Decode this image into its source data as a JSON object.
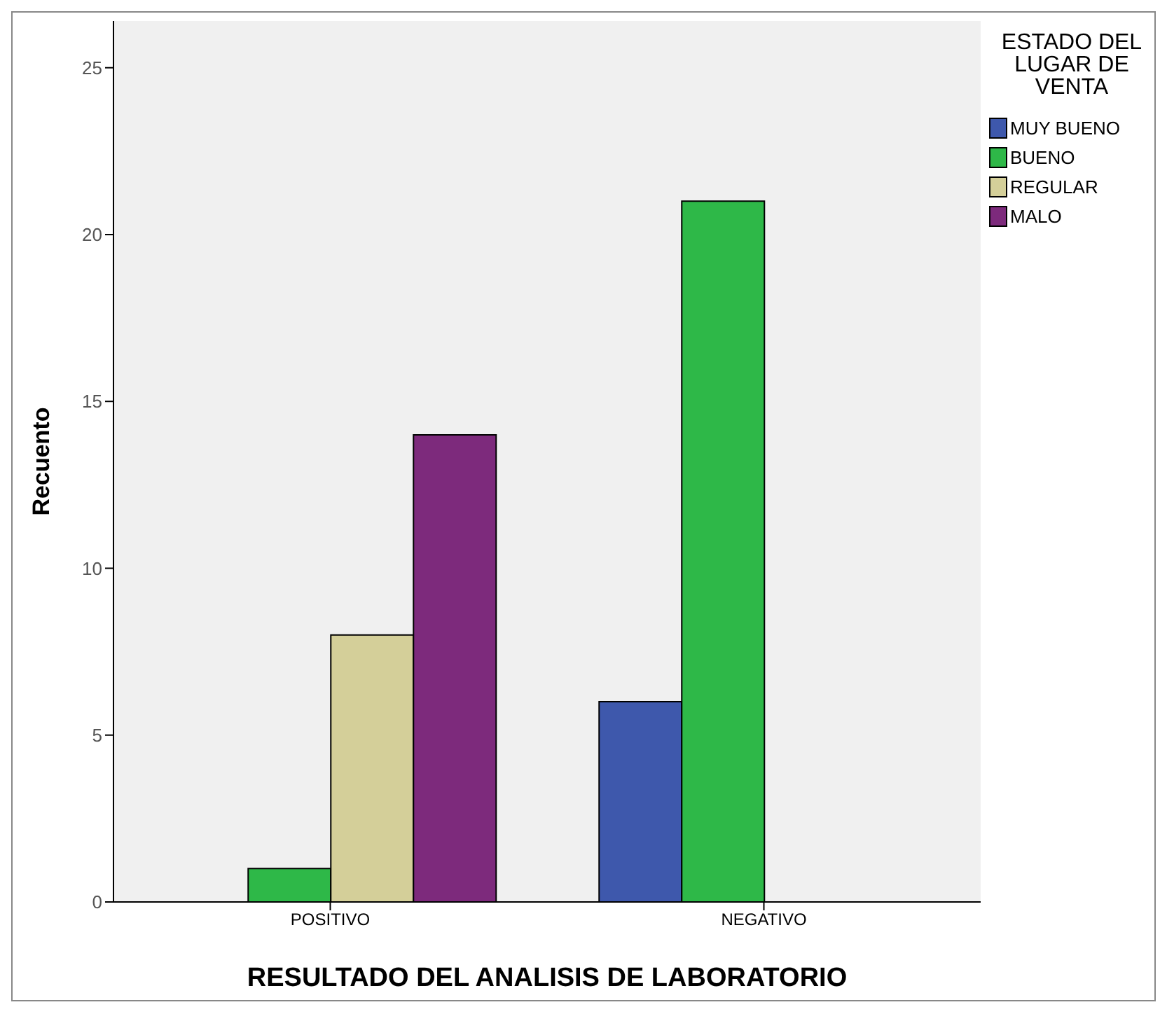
{
  "chart_data": {
    "type": "bar",
    "xlabel": "RESULTADO DEL ANALISIS DE LABORATORIO",
    "ylabel": "Recuento",
    "legend_title": "ESTADO DEL LUGAR DE VENTA",
    "categories": [
      "POSITIVO",
      "NEGATIVO"
    ],
    "series": [
      {
        "name": "MUY BUENO",
        "color": "#3e58ac",
        "values": [
          null,
          6
        ]
      },
      {
        "name": "BUENO",
        "color": "#2eb848",
        "values": [
          1,
          21
        ]
      },
      {
        "name": "REGULAR",
        "color": "#d4cf99",
        "values": [
          8,
          null
        ]
      },
      {
        "name": "MALO",
        "color": "#7d2a7c",
        "values": [
          14,
          null
        ]
      }
    ],
    "ylim": [
      0,
      26.4
    ],
    "yticks": [
      0,
      5,
      10,
      15,
      20,
      25
    ],
    "grid": false,
    "legend": "right"
  }
}
